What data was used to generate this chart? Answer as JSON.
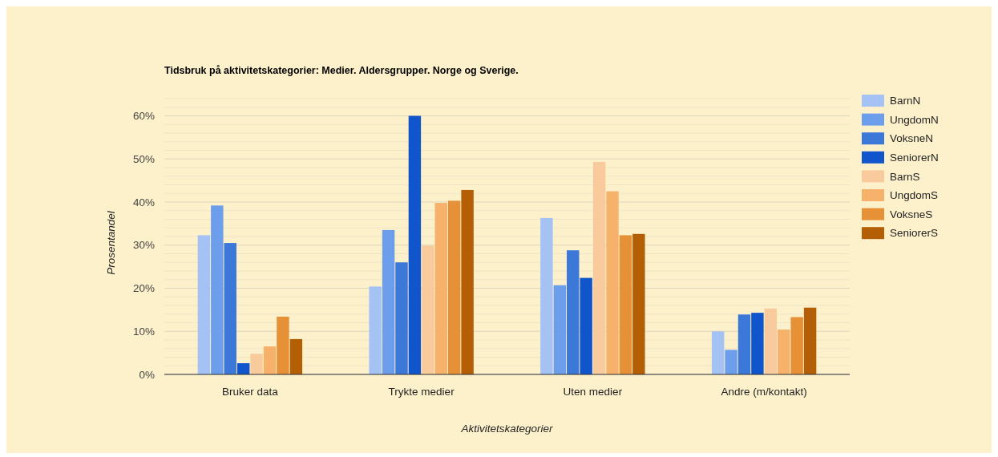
{
  "chart_data": {
    "type": "bar",
    "title": "Tidsbruk på aktivitetskategorier: Medier. Aldersgrupper. Norge og Sverige.",
    "xlabel": "Aktivitetskategorier",
    "ylabel": "Prosentandel",
    "categories": [
      "Bruker data",
      "Trykte medier",
      "Uten medier",
      "Andre (m/kontakt)"
    ],
    "series": [
      {
        "name": "BarnN",
        "color": "#a4c2f4",
        "values": [
          32.3,
          20.4,
          36.3,
          10.0
        ]
      },
      {
        "name": "UngdomN",
        "color": "#6d9eeb",
        "values": [
          39.2,
          33.5,
          20.7,
          5.7
        ]
      },
      {
        "name": "VoksneN",
        "color": "#3c78d8",
        "values": [
          30.5,
          26.0,
          28.8,
          13.9
        ]
      },
      {
        "name": "SeniorerN",
        "color": "#1155cc",
        "values": [
          2.6,
          60.0,
          22.4,
          14.3
        ]
      },
      {
        "name": "BarnS",
        "color": "#f9cb9c",
        "values": [
          4.8,
          29.9,
          49.3,
          15.3
        ]
      },
      {
        "name": "UngdomS",
        "color": "#f6b26b",
        "values": [
          6.5,
          39.8,
          42.5,
          10.4
        ]
      },
      {
        "name": "VoksneS",
        "color": "#e69138",
        "values": [
          13.4,
          40.3,
          32.3,
          13.3
        ]
      },
      {
        "name": "SeniorerS",
        "color": "#b45f06",
        "values": [
          8.2,
          42.8,
          32.6,
          15.5
        ]
      }
    ],
    "ylim": [
      0,
      64
    ],
    "yticks": [
      {
        "value": 0,
        "label": "0%"
      },
      {
        "value": 2,
        "label": null
      },
      {
        "value": 4,
        "label": null
      },
      {
        "value": 6,
        "label": null
      },
      {
        "value": 8,
        "label": null
      },
      {
        "value": 10,
        "label": "10%"
      },
      {
        "value": 12,
        "label": null
      },
      {
        "value": 14,
        "label": null
      },
      {
        "value": 16,
        "label": null
      },
      {
        "value": 18,
        "label": null
      },
      {
        "value": 20,
        "label": "20%"
      },
      {
        "value": 22,
        "label": null
      },
      {
        "value": 24,
        "label": null
      },
      {
        "value": 26,
        "label": null
      },
      {
        "value": 28,
        "label": null
      },
      {
        "value": 30,
        "label": "30%"
      },
      {
        "value": 32,
        "label": null
      },
      {
        "value": 34,
        "label": null
      },
      {
        "value": 36,
        "label": null
      },
      {
        "value": 38,
        "label": null
      },
      {
        "value": 40,
        "label": "40%"
      },
      {
        "value": 42,
        "label": null
      },
      {
        "value": 44,
        "label": null
      },
      {
        "value": 46,
        "label": null
      },
      {
        "value": 48,
        "label": null
      },
      {
        "value": 50,
        "label": "50%"
      },
      {
        "value": 52,
        "label": null
      },
      {
        "value": 54,
        "label": null
      },
      {
        "value": 56,
        "label": null
      },
      {
        "value": 58,
        "label": null
      },
      {
        "value": 60,
        "label": "60%"
      },
      {
        "value": 62,
        "label": null
      },
      {
        "value": 64,
        "label": null
      }
    ],
    "grid": "y",
    "legend": "right"
  }
}
